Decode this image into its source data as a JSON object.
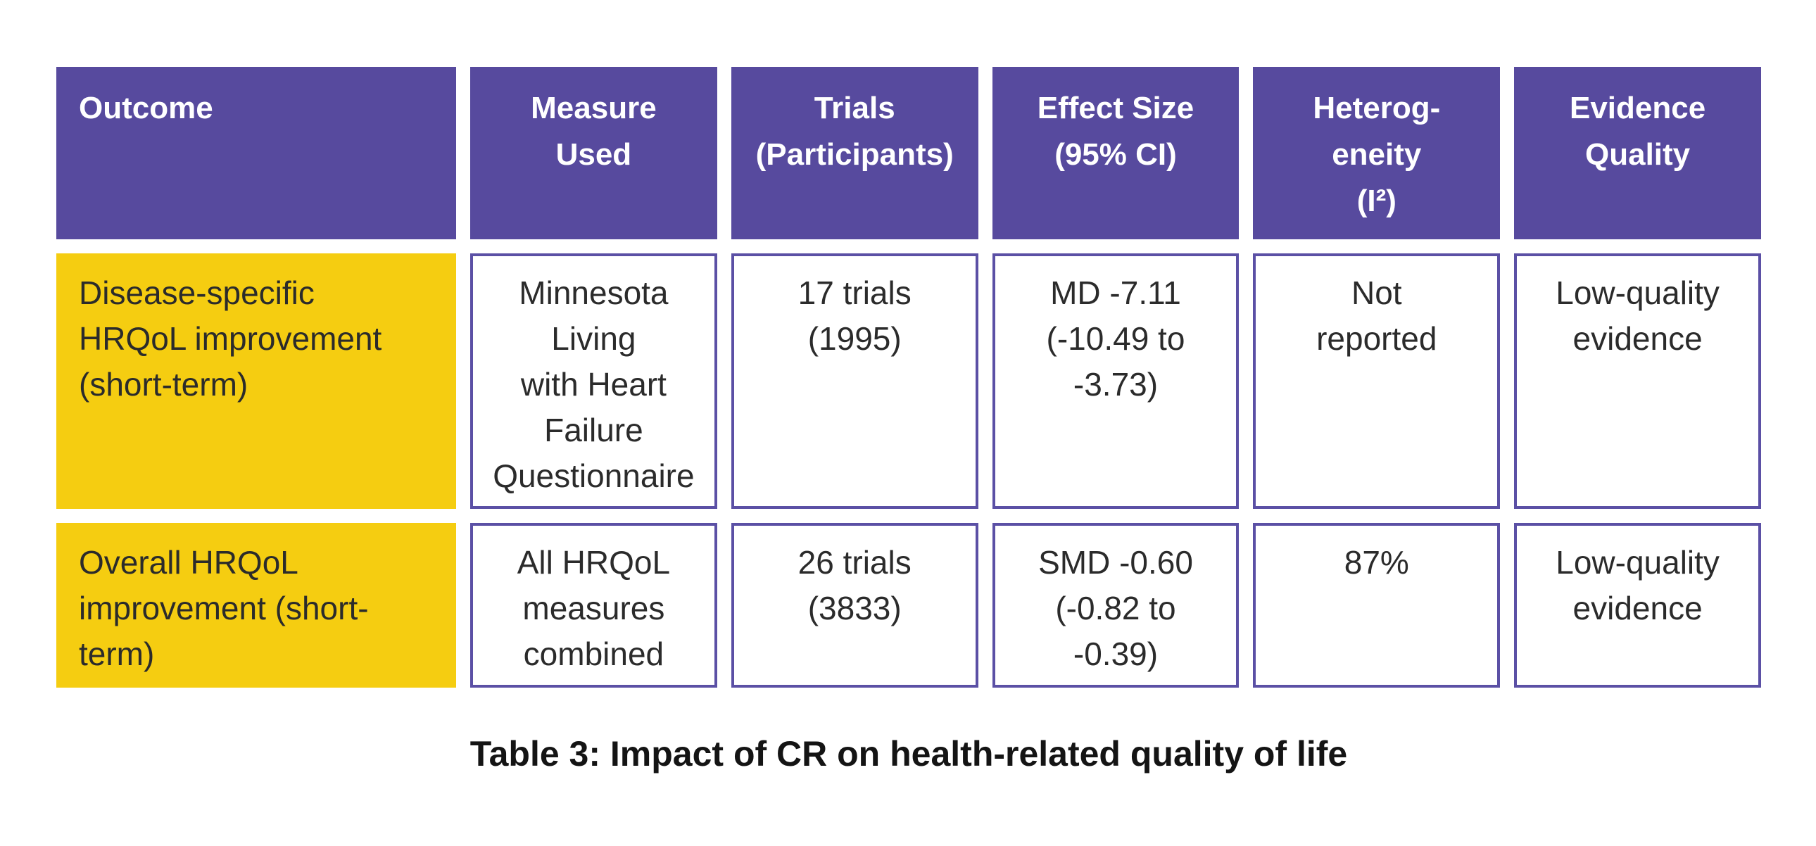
{
  "colors": {
    "header_bg": "#574a9e",
    "header_text": "#ffffff",
    "outcome_cell_bg": "#f5cd11",
    "data_cell_border": "#5b50a5",
    "data_cell_bg": "#ffffff",
    "body_text": "#2b2b2b",
    "caption_text": "#141414",
    "page_bg": "#ffffff"
  },
  "table": {
    "headers": [
      {
        "label": "Outcome"
      },
      {
        "label": "Measure\nUsed"
      },
      {
        "label": "Trials\n(Participants)"
      },
      {
        "label": "Effect Size\n(95% CI)"
      },
      {
        "label": "Heterog-\neneity\n(I²)"
      },
      {
        "label": "Evidence\nQuality"
      }
    ],
    "rows": [
      {
        "outcome": "Disease-specific\nHRQoL improvement\n(short-term)",
        "measure": "Minnesota\nLiving\nwith Heart\nFailure\nQuestionnaire",
        "trials": "17 trials\n(1995)",
        "effect_size": "MD -7.11\n(-10.49 to\n-3.73)",
        "heterogeneity": "Not\nreported",
        "evidence_quality": "Low-quality\nevidence"
      },
      {
        "outcome": "Overall HRQoL\nimprovement (short-\nterm)",
        "measure": "All HRQoL\nmeasures\ncombined",
        "trials": "26 trials\n(3833)",
        "effect_size": "SMD -0.60\n(-0.82 to\n-0.39)",
        "heterogeneity": "87%",
        "evidence_quality": "Low-quality\nevidence"
      }
    ]
  },
  "caption": "Table 3: Impact of CR on health-related quality of life"
}
